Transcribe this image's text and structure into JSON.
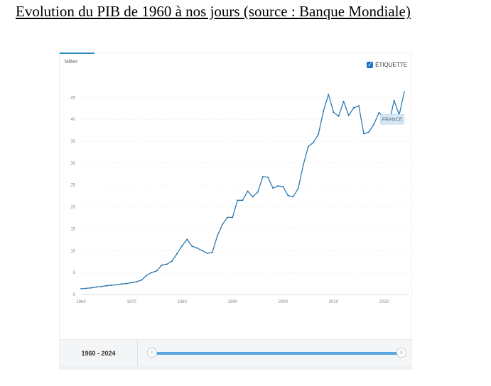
{
  "header": {
    "title": "Evolution du PIB  de 1960 à nos jours (source : Banque Mondiale)"
  },
  "controls": {
    "label_toggle": "ÉTIQUETTE",
    "label_toggle_checked": true,
    "range_text": "1960 - 2024",
    "range_start": 1960,
    "range_end": 2024
  },
  "colors": {
    "line": "#2b7cb5",
    "accent": "#1a73c9",
    "grid": "#e4e7ea"
  },
  "chart_data": {
    "type": "line",
    "title": "",
    "unit_label": "Millier",
    "xlabel": "",
    "ylabel": "Millier",
    "xlim": [
      1960,
      2025
    ],
    "ylim": [
      0,
      47
    ],
    "x_ticks": [
      1960,
      1970,
      1980,
      1990,
      2000,
      2010,
      2020
    ],
    "y_ticks": [
      0,
      5,
      10,
      15,
      20,
      25,
      30,
      35,
      40,
      45
    ],
    "grid": true,
    "series": [
      {
        "name": "FRANCE",
        "x": [
          1960,
          1961,
          1962,
          1963,
          1964,
          1965,
          1966,
          1967,
          1968,
          1969,
          1970,
          1971,
          1972,
          1973,
          1974,
          1975,
          1976,
          1977,
          1978,
          1979,
          1980,
          1981,
          1982,
          1983,
          1984,
          1985,
          1986,
          1987,
          1988,
          1989,
          1990,
          1991,
          1992,
          1993,
          1994,
          1995,
          1996,
          1997,
          1998,
          1999,
          2000,
          2001,
          2002,
          2003,
          2004,
          2005,
          2006,
          2007,
          2008,
          2009,
          2010,
          2011,
          2012,
          2013,
          2014,
          2015,
          2016,
          2017,
          2018,
          2019,
          2020,
          2021,
          2022,
          2023,
          2024
        ],
        "values": [
          1.3,
          1.4,
          1.5,
          1.7,
          1.8,
          2.0,
          2.1,
          2.2,
          2.4,
          2.5,
          2.7,
          2.9,
          3.3,
          4.4,
          5.0,
          5.4,
          6.7,
          6.9,
          7.6,
          9.3,
          11.1,
          12.6,
          11.0,
          10.6,
          10.0,
          9.4,
          9.6,
          13.4,
          16.0,
          17.6,
          17.6,
          21.5,
          21.5,
          23.6,
          22.3,
          23.4,
          26.9,
          26.8,
          24.3,
          24.8,
          24.6,
          22.6,
          22.3,
          24.2,
          29.5,
          33.8,
          34.7,
          36.6,
          41.9,
          45.7,
          41.6,
          40.7,
          44.1,
          40.9,
          42.6,
          43.1,
          36.7,
          37.1,
          38.9,
          41.5,
          40.5,
          39.2,
          44.3,
          41.0,
          46.2
        ]
      }
    ],
    "series_label": "FRANCE"
  }
}
